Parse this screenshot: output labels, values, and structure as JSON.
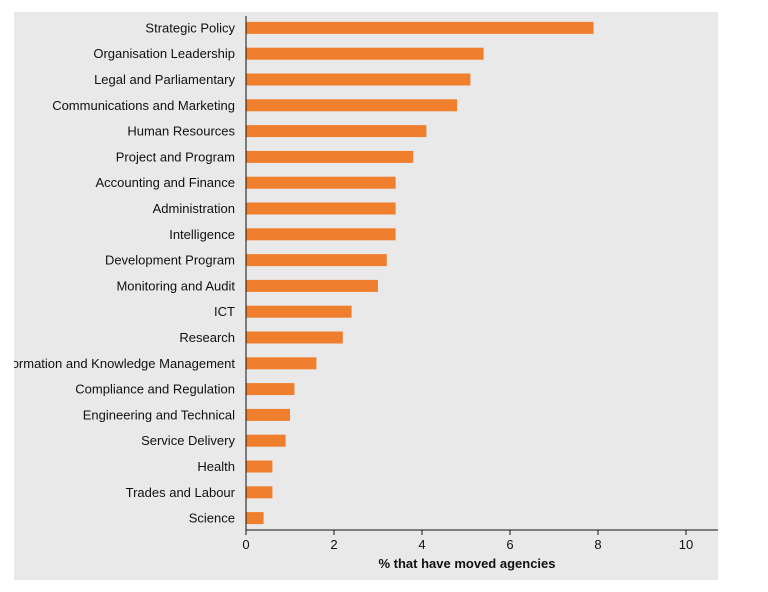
{
  "chart_data": {
    "type": "bar",
    "orientation": "horizontal",
    "categories": [
      "Strategic Policy",
      "Organisation Leadership",
      "Legal and Parliamentary",
      "Communications and Marketing",
      "Human Resources",
      "Project and Program",
      "Accounting and Finance",
      "Administration",
      "Intelligence",
      "Development Program",
      "Monitoring and Audit",
      "ICT",
      "Research",
      "Information and Knowledge Management",
      "Compliance and Regulation",
      "Engineering and Technical",
      "Service Delivery",
      "Health",
      "Trades and Labour",
      "Science"
    ],
    "values": [
      7.9,
      5.4,
      5.1,
      4.8,
      4.1,
      3.8,
      3.4,
      3.4,
      3.4,
      3.2,
      3.0,
      2.4,
      2.2,
      1.6,
      1.1,
      1.0,
      0.9,
      0.6,
      0.6,
      0.4
    ],
    "xlabel": "% that have moved agencies",
    "ylabel": "",
    "xlim": [
      0,
      10
    ],
    "xticks": [
      "0",
      "2",
      "4",
      "6",
      "8",
      "10"
    ],
    "grid": false,
    "bar_color": "#f07f2d",
    "background_color": "#e9e9e9"
  }
}
